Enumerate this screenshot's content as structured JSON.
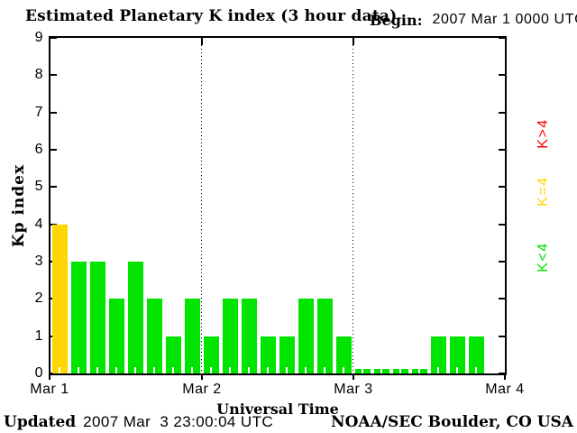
{
  "header": {
    "title": "Estimated Planetary K index (3 hour data)",
    "begin_label": "Begin:",
    "begin_value": "2007 Mar 1 0000 UTC"
  },
  "footer": {
    "updated_label": "Updated",
    "updated_value": "2007 Mar  3 23:00:04 UTC",
    "credit": "NOAA/SEC Boulder, CO USA"
  },
  "chart_data": {
    "type": "bar",
    "title": "Estimated Planetary K index (3 hour data)",
    "xlabel": "Universal Time",
    "ylabel": "Kp index",
    "ylim": [
      0,
      9
    ],
    "yticks": [
      0,
      1,
      2,
      3,
      4,
      5,
      6,
      7,
      8,
      9
    ],
    "x_day_labels": [
      "Mar 1",
      "Mar 2",
      "Mar 3",
      "Mar 4"
    ],
    "hours_per_bar": 3,
    "bars_per_day": 8,
    "values": [
      4,
      3,
      3,
      2,
      3,
      2,
      1,
      2,
      1,
      2,
      2,
      1,
      1,
      2,
      2,
      1,
      0,
      0,
      0,
      0,
      1,
      1,
      1,
      null
    ],
    "grid": "dotted vertical lines at day boundaries",
    "legend_position": "right",
    "color_rules": {
      "above_4": "#ff0000",
      "equal_4": "#ffd700",
      "below_4": "#00e400"
    }
  },
  "legend": {
    "items": [
      {
        "label": "K>4",
        "color": "#ff0000"
      },
      {
        "label": "K=4",
        "color": "#ffd700"
      },
      {
        "label": "K<4",
        "color": "#00e400"
      }
    ]
  }
}
